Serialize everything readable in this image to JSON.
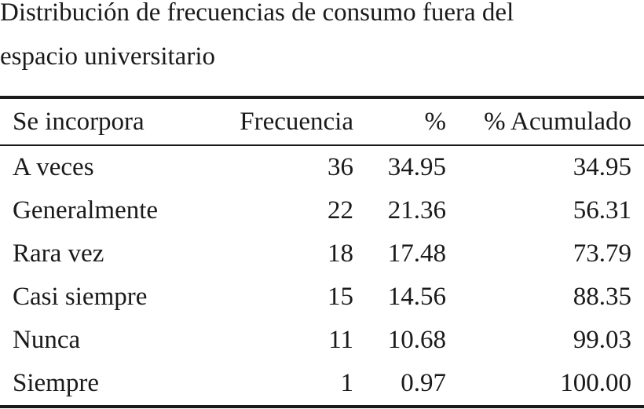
{
  "caption": {
    "line1": "Distribución de frecuencias de consumo fuera del",
    "line2": "espacio universitario"
  },
  "table": {
    "headers": [
      "Se incorpora",
      "Frecuencia",
      "%",
      "% Acumulado"
    ],
    "rows": [
      [
        "A veces",
        "36",
        "34.95",
        "34.95"
      ],
      [
        "Generalmente",
        "22",
        "21.36",
        "56.31"
      ],
      [
        "Rara vez",
        "18",
        "17.48",
        "73.79"
      ],
      [
        "Casi siempre",
        "15",
        "14.56",
        "88.35"
      ],
      [
        "Nunca",
        "11",
        "10.68",
        "99.03"
      ],
      [
        "Siempre",
        "1",
        "0.97",
        "100.00"
      ]
    ]
  }
}
